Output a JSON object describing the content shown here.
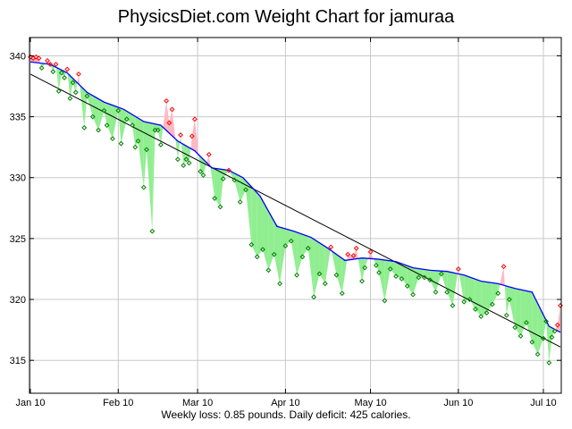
{
  "chart_data": {
    "type": "line",
    "title": "PhysicsDiet.com Weight Chart for jamuraa",
    "subtitle": "Weekly loss: 0.85 pounds. Daily deficit: 425 calories.",
    "x_ticks": [
      {
        "day": 0,
        "label": "Jan 10"
      },
      {
        "day": 31,
        "label": "Feb 10"
      },
      {
        "day": 59,
        "label": "Mar 10"
      },
      {
        "day": 90,
        "label": "Apr 10"
      },
      {
        "day": 120,
        "label": "May 10"
      },
      {
        "day": 151,
        "label": "Jun 10"
      },
      {
        "day": 181,
        "label": "Jul 10"
      }
    ],
    "xlim": [
      "2010-01-01",
      "2010-07-07"
    ],
    "y_ticks": [
      340,
      335,
      330,
      325,
      320,
      315
    ],
    "ylim": [
      312.3,
      341.5
    ],
    "grid": true,
    "trend_line": {
      "x": [
        "2010-01-01",
        "2010-07-07"
      ],
      "y": [
        338.5,
        316.1
      ]
    },
    "moving_average": {
      "x": [
        "2010-01-01",
        "2010-01-08",
        "2010-01-14",
        "2010-01-21",
        "2010-01-27",
        "2010-02-03",
        "2010-02-10",
        "2010-02-16",
        "2010-02-22",
        "2010-02-28",
        "2010-03-06",
        "2010-03-12",
        "2010-03-17",
        "2010-03-23",
        "2010-03-29",
        "2010-04-04",
        "2010-04-10",
        "2010-04-16",
        "2010-04-22",
        "2010-04-28",
        "2010-05-04",
        "2010-05-10",
        "2010-05-16",
        "2010-05-22",
        "2010-05-28",
        "2010-06-03",
        "2010-06-09",
        "2010-06-15",
        "2010-06-21",
        "2010-06-27",
        "2010-07-03",
        "2010-07-07"
      ],
      "y": [
        339.5,
        339.3,
        338.6,
        337.0,
        336.2,
        335.6,
        334.6,
        334.3,
        333.0,
        332.2,
        330.8,
        330.6,
        330.0,
        328.5,
        326.0,
        325.6,
        325.1,
        324.2,
        323.2,
        323.4,
        323.3,
        323.1,
        322.6,
        322.4,
        322.3,
        322.0,
        321.5,
        321.3,
        320.9,
        320.6,
        317.8,
        317.3
      ]
    },
    "observations": {
      "x": [
        "2010-01-01",
        "2010-01-02",
        "2010-01-03",
        "2010-01-04",
        "2010-01-05",
        "2010-01-07",
        "2010-01-08",
        "2010-01-09",
        "2010-01-10",
        "2010-01-11",
        "2010-01-12",
        "2010-01-13",
        "2010-01-14",
        "2010-01-15",
        "2010-01-16",
        "2010-01-17",
        "2010-01-18",
        "2010-01-20",
        "2010-01-21",
        "2010-01-23",
        "2010-01-25",
        "2010-01-27",
        "2010-01-28",
        "2010-01-30",
        "2010-02-01",
        "2010-02-02",
        "2010-02-04",
        "2010-02-06",
        "2010-02-07",
        "2010-02-08",
        "2010-02-10",
        "2010-02-11",
        "2010-02-13",
        "2010-02-14",
        "2010-02-15",
        "2010-02-16",
        "2010-02-18",
        "2010-02-19",
        "2010-02-20",
        "2010-02-22",
        "2010-02-23",
        "2010-02-24",
        "2010-02-25",
        "2010-02-26",
        "2010-02-27",
        "2010-02-28",
        "2010-03-02",
        "2010-03-03",
        "2010-03-05",
        "2010-03-07",
        "2010-03-09",
        "2010-03-10",
        "2010-03-12",
        "2010-03-14",
        "2010-03-16",
        "2010-03-18",
        "2010-03-20",
        "2010-03-22",
        "2010-03-24",
        "2010-03-26",
        "2010-03-28",
        "2010-03-30",
        "2010-04-01",
        "2010-04-03",
        "2010-04-05",
        "2010-04-07",
        "2010-04-09",
        "2010-04-11",
        "2010-04-13",
        "2010-04-15",
        "2010-04-17",
        "2010-04-19",
        "2010-04-21",
        "2010-04-23",
        "2010-04-25",
        "2010-04-26",
        "2010-04-28",
        "2010-04-29",
        "2010-05-01",
        "2010-05-03",
        "2010-05-04",
        "2010-05-06",
        "2010-05-08",
        "2010-05-10",
        "2010-05-12",
        "2010-05-14",
        "2010-05-16",
        "2010-05-18",
        "2010-05-20",
        "2010-05-22",
        "2010-05-24",
        "2010-05-26",
        "2010-05-28",
        "2010-05-30",
        "2010-06-01",
        "2010-06-03",
        "2010-06-05",
        "2010-06-07",
        "2010-06-09",
        "2010-06-11",
        "2010-06-13",
        "2010-06-15",
        "2010-06-17",
        "2010-06-18",
        "2010-06-19",
        "2010-06-21",
        "2010-06-23",
        "2010-06-25",
        "2010-06-27",
        "2010-06-29",
        "2010-07-01",
        "2010-07-02",
        "2010-07-03",
        "2010-07-04",
        "2010-07-05",
        "2010-07-06",
        "2010-07-07"
      ],
      "y": [
        339.9,
        339.8,
        339.9,
        339.8,
        339.0,
        339.6,
        339.3,
        338.7,
        339.3,
        337.1,
        338.6,
        338.2,
        338.9,
        336.5,
        337.8,
        337.0,
        338.5,
        334.1,
        336.7,
        335.0,
        333.9,
        335.5,
        334.3,
        333.2,
        335.5,
        332.8,
        334.8,
        334.3,
        332.5,
        333.0,
        329.2,
        332.3,
        325.6,
        333.9,
        333.9,
        332.7,
        336.3,
        334.5,
        335.6,
        331.5,
        333.5,
        331.0,
        331.5,
        331.2,
        333.4,
        334.8,
        330.5,
        330.2,
        331.9,
        328.3,
        327.6,
        329.9,
        330.6,
        329.8,
        328.0,
        329.0,
        324.5,
        323.5,
        324.1,
        322.4,
        323.7,
        321.3,
        324.4,
        324.8,
        322.0,
        323.5,
        324.2,
        320.2,
        322.1,
        321.3,
        324.3,
        322.0,
        320.5,
        323.7,
        323.6,
        324.2,
        321.5,
        322.6,
        323.9,
        322.8,
        322.2,
        319.9,
        322.5,
        321.9,
        321.7,
        321.1,
        320.4,
        321.8,
        321.8,
        321.6,
        320.6,
        322.1,
        320.6,
        319.5,
        322.5,
        319.8,
        320.0,
        319.2,
        318.6,
        318.9,
        319.6,
        320.5,
        322.7,
        318.7,
        320.0,
        317.7,
        317.0,
        318.1,
        316.5,
        315.5,
        316.8,
        318.2,
        314.8,
        316.9,
        317.4,
        317.9,
        319.5
      ]
    },
    "colors": {
      "above_trend_fill": "#ffb6c1",
      "below_trend_fill": "#90ee90",
      "moving_average": "#0000ff",
      "trend_line": "#000000",
      "above_marker": "#ff0000",
      "below_marker": "#008000",
      "grid": "#c8c8c8"
    }
  }
}
